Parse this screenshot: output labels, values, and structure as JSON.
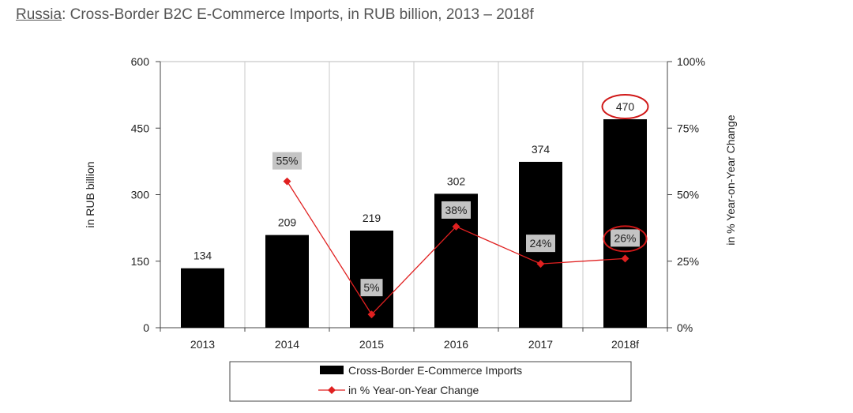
{
  "title": {
    "country": "Russia",
    "rest": ": Cross-Border B2C E-Commerce Imports, in RUB billion, 2013 – 2018f"
  },
  "chart_data": {
    "type": "bar",
    "categories": [
      "2013",
      "2014",
      "2015",
      "2016",
      "2017",
      "2018f"
    ],
    "series": [
      {
        "name": "Cross-Border E-Commerce Imports",
        "kind": "bar",
        "axis": "left",
        "values": [
          134,
          209,
          219,
          302,
          374,
          470
        ],
        "labels": [
          "134",
          "209",
          "219",
          "302",
          "374",
          "470"
        ],
        "color": "#000000"
      },
      {
        "name": "in % Year-on-Year Change",
        "kind": "line",
        "axis": "right",
        "values": [
          null,
          55,
          5,
          38,
          24,
          26
        ],
        "labels": [
          "",
          "55%",
          "5%",
          "38%",
          "24%",
          "26%"
        ],
        "color": "#e02020"
      }
    ],
    "ylabel": "in RUB billion",
    "y2label": "in % Year-on-Year Change",
    "ylim": [
      0,
      600
    ],
    "y2lim": [
      0,
      100
    ],
    "yticks": [
      "0",
      "150",
      "300",
      "450",
      "600"
    ],
    "y2ticks": [
      "0%",
      "25%",
      "50%",
      "75%",
      "100%"
    ],
    "grid": true,
    "legend_position": "bottom",
    "highlighted": [
      "470",
      "26%"
    ]
  }
}
